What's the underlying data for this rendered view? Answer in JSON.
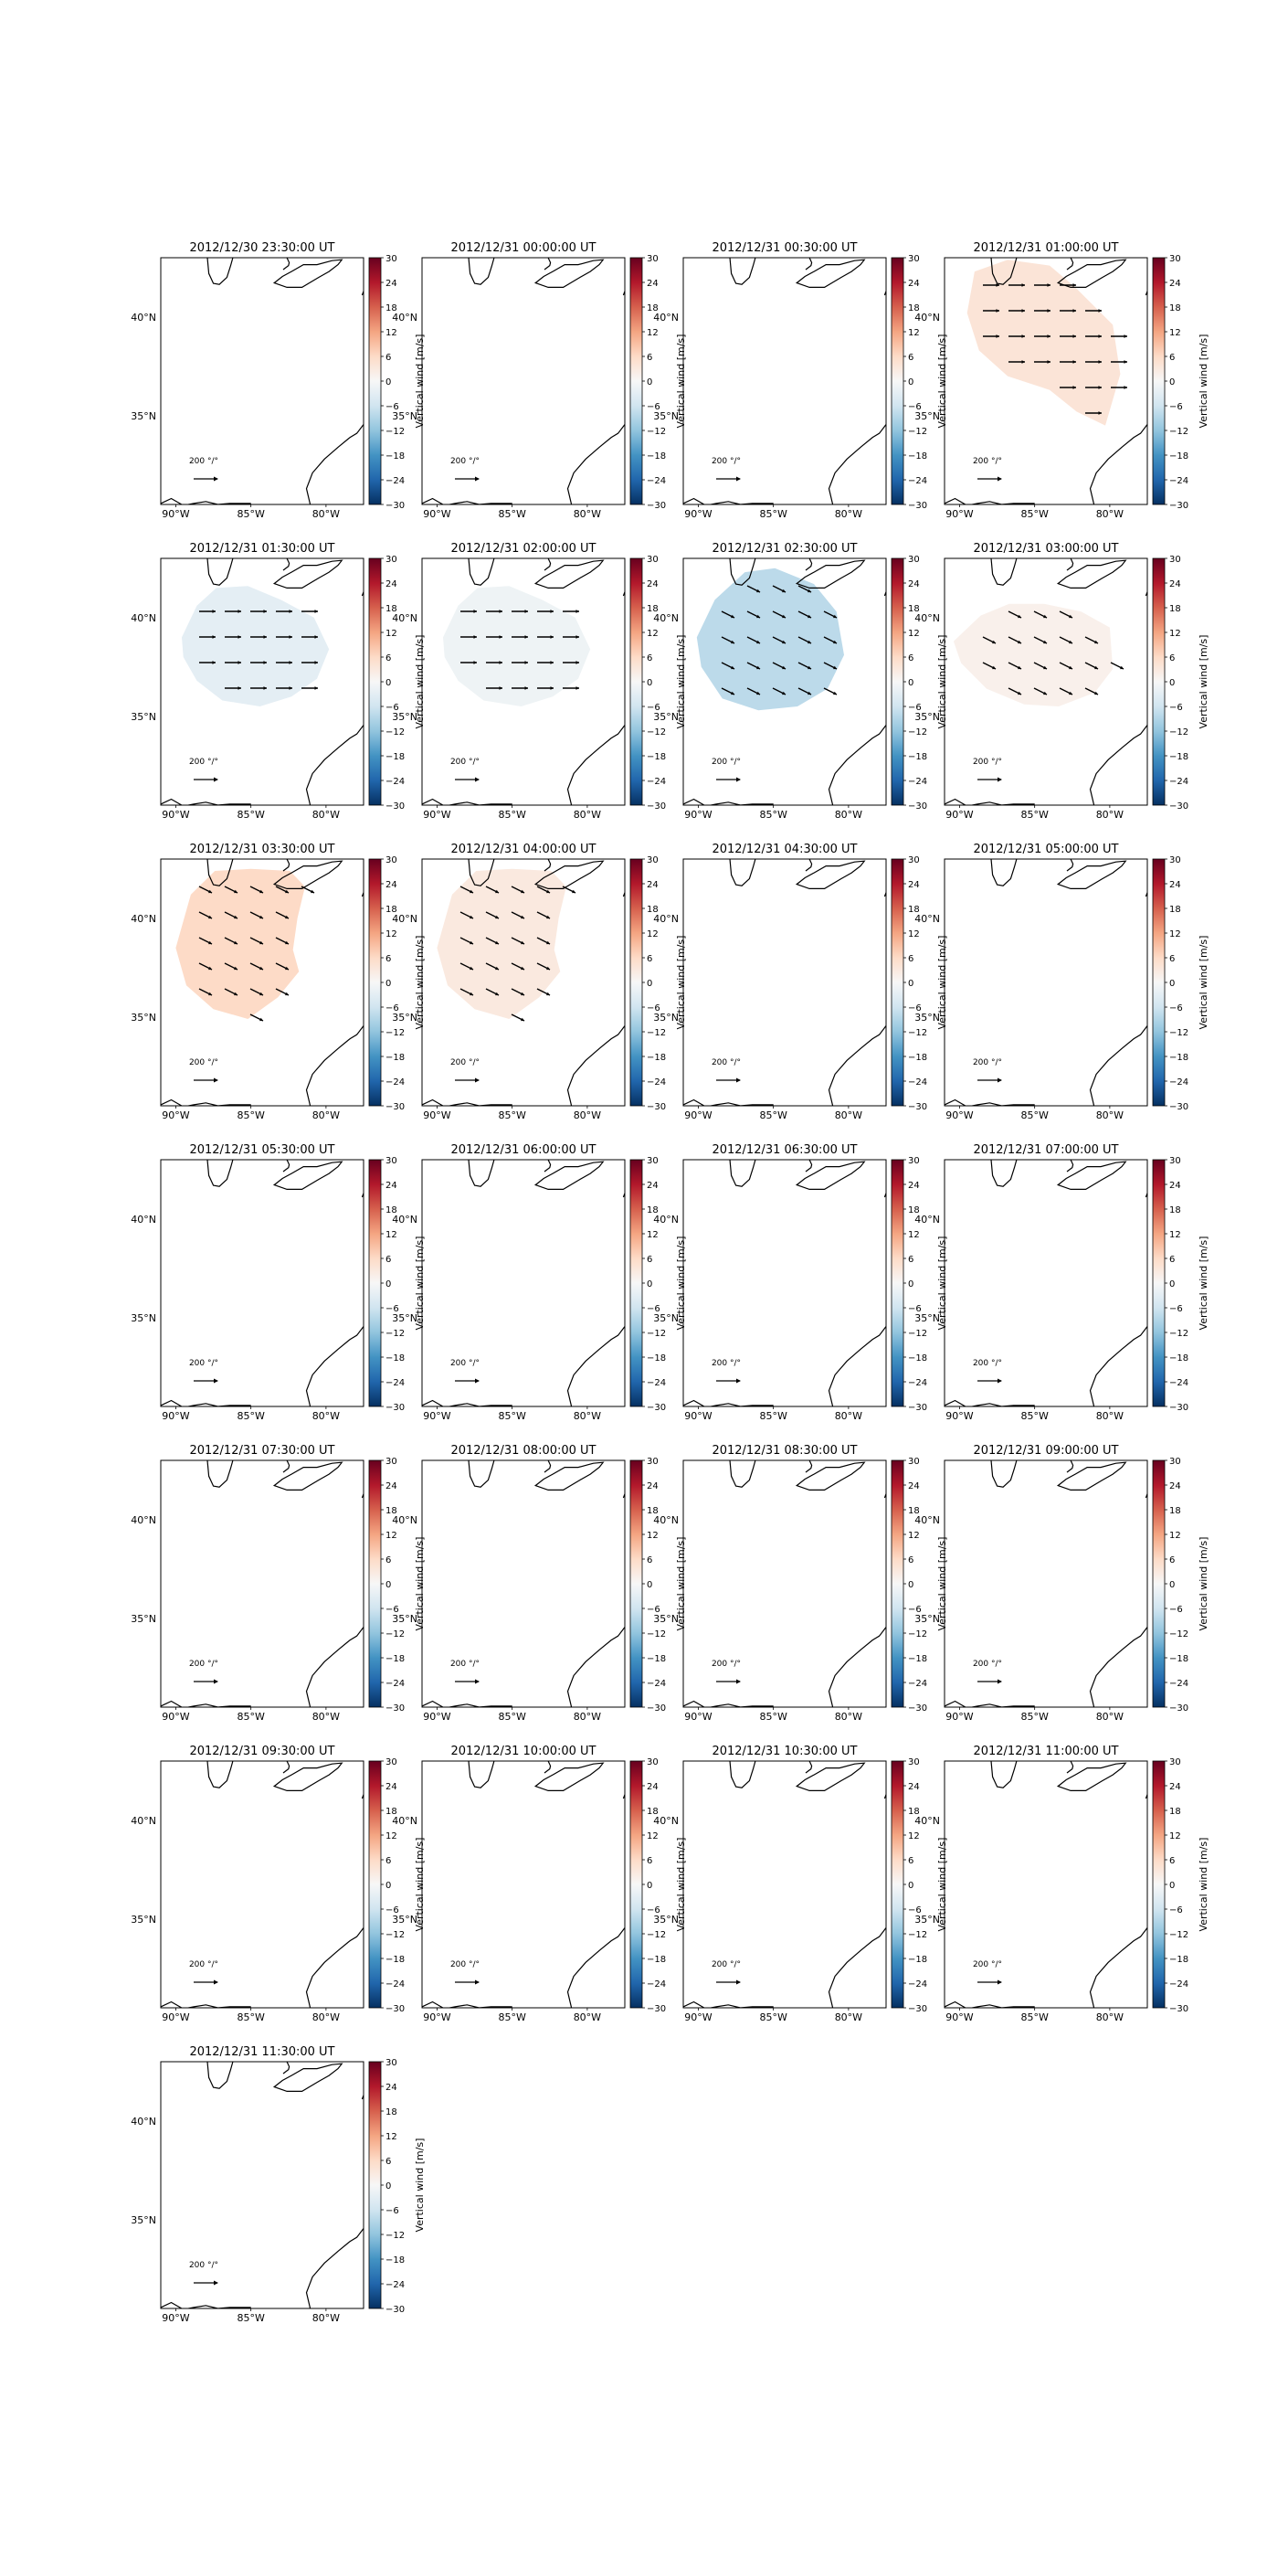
{
  "figure": {
    "colorbar": {
      "label": "Vertical wind [m/s]",
      "min": -30,
      "max": 30,
      "ticks": [
        "30",
        "24",
        "18",
        "12",
        "6",
        "0",
        "−6",
        "−12",
        "−18",
        "−24",
        "−30"
      ],
      "colormap": "RdBu_r"
    },
    "map": {
      "lon_ticks": [
        "90°W",
        "85°W",
        "80°W"
      ],
      "lat_ticks": [
        "40°N",
        "35°N"
      ],
      "lon_range": [
        -91,
        -77.5
      ],
      "lat_range": [
        30.5,
        43
      ],
      "quiver_key_label": "200 °/°"
    },
    "layout": {
      "rows": 7,
      "cols": 4
    }
  },
  "chart_data": [
    {
      "type": "heatmap",
      "title": "2012/12/30 23:30:00 UT",
      "field": "none"
    },
    {
      "type": "heatmap",
      "title": "2012/12/31 00:00:00 UT",
      "field": "none"
    },
    {
      "type": "heatmap",
      "title": "2012/12/31 00:30:00 UT",
      "field": "none"
    },
    {
      "type": "heatmap",
      "title": "2012/12/31 01:00:00 UT",
      "field": "blobA",
      "value": 4,
      "arrows": "east"
    },
    {
      "type": "heatmap",
      "title": "2012/12/31 01:30:00 UT",
      "field": "blobB",
      "value": -3,
      "arrows": "east"
    },
    {
      "type": "heatmap",
      "title": "2012/12/31 02:00:00 UT",
      "field": "blobB",
      "value": -1.5,
      "arrows": "east"
    },
    {
      "type": "heatmap",
      "title": "2012/12/31 02:30:00 UT",
      "field": "blobC",
      "value": -8,
      "arrows": "southeast"
    },
    {
      "type": "heatmap",
      "title": "2012/12/31 03:00:00 UT",
      "field": "blobD",
      "value": 1.5,
      "arrows": "southeast"
    },
    {
      "type": "heatmap",
      "title": "2012/12/31 03:30:00 UT",
      "field": "blobE",
      "value": 6,
      "arrows": "southeast"
    },
    {
      "type": "heatmap",
      "title": "2012/12/31 04:00:00 UT",
      "field": "blobE",
      "value": 3,
      "arrows": "southeast"
    },
    {
      "type": "heatmap",
      "title": "2012/12/31 04:30:00 UT",
      "field": "none"
    },
    {
      "type": "heatmap",
      "title": "2012/12/31 05:00:00 UT",
      "field": "none"
    },
    {
      "type": "heatmap",
      "title": "2012/12/31 05:30:00 UT",
      "field": "none"
    },
    {
      "type": "heatmap",
      "title": "2012/12/31 06:00:00 UT",
      "field": "none"
    },
    {
      "type": "heatmap",
      "title": "2012/12/31 06:30:00 UT",
      "field": "none"
    },
    {
      "type": "heatmap",
      "title": "2012/12/31 07:00:00 UT",
      "field": "none"
    },
    {
      "type": "heatmap",
      "title": "2012/12/31 07:30:00 UT",
      "field": "none"
    },
    {
      "type": "heatmap",
      "title": "2012/12/31 08:00:00 UT",
      "field": "none"
    },
    {
      "type": "heatmap",
      "title": "2012/12/31 08:30:00 UT",
      "field": "none"
    },
    {
      "type": "heatmap",
      "title": "2012/12/31 09:00:00 UT",
      "field": "none"
    },
    {
      "type": "heatmap",
      "title": "2012/12/31 09:30:00 UT",
      "field": "none"
    },
    {
      "type": "heatmap",
      "title": "2012/12/31 10:00:00 UT",
      "field": "none"
    },
    {
      "type": "heatmap",
      "title": "2012/12/31 10:30:00 UT",
      "field": "none"
    },
    {
      "type": "heatmap",
      "title": "2012/12/31 11:00:00 UT",
      "field": "none"
    },
    {
      "type": "heatmap",
      "title": "2012/12/31 11:30:00 UT",
      "field": "none"
    }
  ]
}
